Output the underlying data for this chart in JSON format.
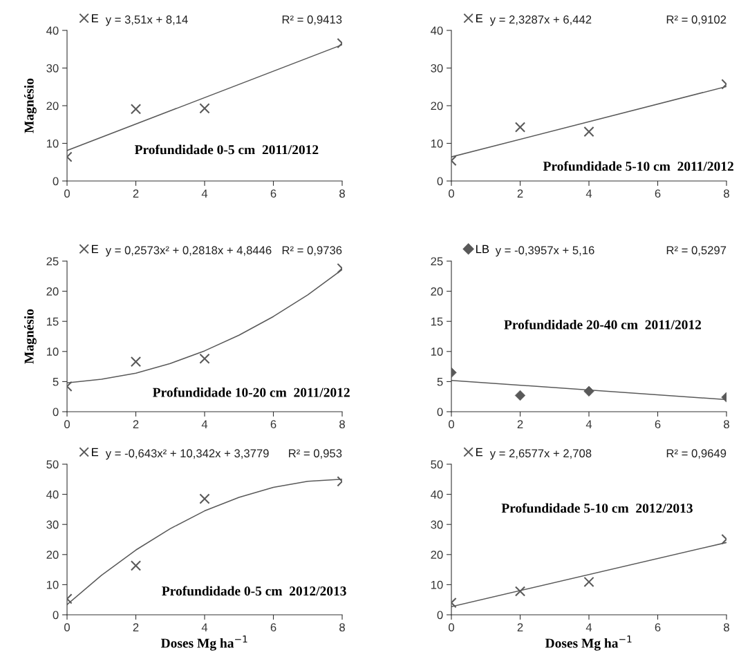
{
  "chart_data": [
    {
      "type": "scatter",
      "ylabel": "Magnésio",
      "xlim": [
        0,
        8
      ],
      "xticks": [
        0,
        2,
        4,
        6,
        8
      ],
      "ylim": [
        0,
        40
      ],
      "yticks": [
        0,
        10,
        20,
        30,
        40
      ],
      "grid": false,
      "legend": "top left",
      "annotations": [
        "y = 3,51x + 8,14",
        "R² = 0,9413",
        "Profundidade 0-5 cm  2011/2012"
      ],
      "series": [
        {
          "name": "E",
          "marker": "cross",
          "color": "#595959",
          "x": [
            0,
            2,
            4,
            8
          ],
          "values": [
            6.4,
            19.1,
            19.3,
            36.6
          ]
        },
        {
          "type": "line",
          "color": "#595959",
          "x": [
            0,
            8
          ],
          "values": [
            8.1,
            36.2
          ]
        }
      ]
    },
    {
      "type": "scatter",
      "xlim": [
        0,
        8
      ],
      "xticks": [
        0,
        2,
        4,
        6,
        8
      ],
      "ylim": [
        0,
        40
      ],
      "yticks": [
        0,
        10,
        20,
        30,
        40
      ],
      "grid": false,
      "legend": "top left",
      "annotations": [
        "y = 2,3287x + 6,442",
        "R² = 0,9102",
        "Profundidade 5-10 cm  2011/2012"
      ],
      "series": [
        {
          "name": "E",
          "marker": "cross",
          "color": "#595959",
          "x": [
            0,
            2,
            4,
            8
          ],
          "values": [
            5.4,
            14.3,
            13.1,
            25.7
          ]
        },
        {
          "type": "line",
          "color": "#595959",
          "x": [
            0,
            8
          ],
          "values": [
            6.4,
            25.1
          ]
        }
      ]
    },
    {
      "type": "scatter",
      "ylabel": "Magnésio",
      "xlim": [
        0,
        8
      ],
      "xticks": [
        0,
        2,
        4,
        6,
        8
      ],
      "ylim": [
        0,
        25
      ],
      "yticks": [
        0,
        5,
        10,
        15,
        20,
        25
      ],
      "grid": false,
      "legend": "top left",
      "annotations": [
        "y = 0,2573x² + 0,2818x + 4,8446",
        "R² = 0,9736",
        "Profundidade 10-20 cm  2011/2012"
      ],
      "series": [
        {
          "name": "E",
          "marker": "cross",
          "color": "#595959",
          "x": [
            0,
            2,
            4,
            8
          ],
          "values": [
            4.2,
            8.3,
            8.8,
            23.8
          ]
        },
        {
          "type": "line",
          "color": "#595959",
          "x": [
            0,
            1,
            2,
            3,
            4,
            5,
            6,
            7,
            8
          ],
          "values": [
            4.8,
            5.4,
            6.4,
            8.0,
            10.1,
            12.7,
            15.8,
            19.4,
            23.6
          ]
        }
      ]
    },
    {
      "type": "scatter",
      "xlim": [
        0,
        8
      ],
      "xticks": [
        0,
        2,
        4,
        6,
        8
      ],
      "ylim": [
        0,
        25
      ],
      "yticks": [
        0,
        5,
        10,
        15,
        20,
        25
      ],
      "grid": false,
      "legend": "top left",
      "annotations": [
        "y = -0,3957x + 5,16",
        "R² = 0,5297",
        "Profundidade 20-40 cm  2011/2012"
      ],
      "series": [
        {
          "name": "LB",
          "marker": "diamond",
          "color": "#595959",
          "x": [
            0,
            2,
            4,
            8
          ],
          "values": [
            6.5,
            2.7,
            3.4,
            2.4
          ]
        },
        {
          "type": "line",
          "color": "#595959",
          "x": [
            0,
            8
          ],
          "values": [
            5.2,
            2.0
          ]
        }
      ]
    },
    {
      "type": "scatter",
      "xlabel": "Doses Mg ha$^{−1}$",
      "xlim": [
        0,
        8
      ],
      "xticks": [
        0,
        2,
        4,
        6,
        8
      ],
      "ylim": [
        0,
        50
      ],
      "yticks": [
        0,
        10,
        20,
        30,
        40,
        50
      ],
      "grid": false,
      "legend": "top left",
      "annotations": [
        "y = -0,643x² + 10,342x + 3,3779",
        "R² = 0,953",
        "Profundidade 0-5 cm  2012/2013"
      ],
      "series": [
        {
          "name": "E",
          "marker": "cross",
          "color": "#595959",
          "x": [
            0,
            2,
            4,
            8
          ],
          "values": [
            5.3,
            16.3,
            38.5,
            44.3
          ]
        },
        {
          "type": "line",
          "color": "#595959",
          "x": [
            0,
            1,
            2,
            3,
            4,
            5,
            6,
            7,
            8
          ],
          "values": [
            3.4,
            13.1,
            21.5,
            28.6,
            34.5,
            39.0,
            42.3,
            44.3,
            45.0
          ]
        }
      ]
    },
    {
      "type": "scatter",
      "xlabel": "Doses Mg ha$^{−1}$",
      "xlim": [
        0,
        8
      ],
      "xticks": [
        0,
        2,
        4,
        6,
        8
      ],
      "ylim": [
        0,
        50
      ],
      "yticks": [
        0,
        10,
        20,
        30,
        40,
        50
      ],
      "grid": false,
      "legend": "top left",
      "annotations": [
        "y = 2,6577x + 2,708",
        "R² = 0,9649",
        "Profundidade 5-10 cm  2012/2013"
      ],
      "series": [
        {
          "name": "E",
          "marker": "cross",
          "color": "#595959",
          "x": [
            0,
            2,
            4,
            8
          ],
          "values": [
            4.0,
            7.8,
            10.9,
            25.1
          ]
        },
        {
          "type": "line",
          "color": "#595959",
          "x": [
            0,
            8
          ],
          "values": [
            2.7,
            24.0
          ]
        }
      ]
    }
  ]
}
